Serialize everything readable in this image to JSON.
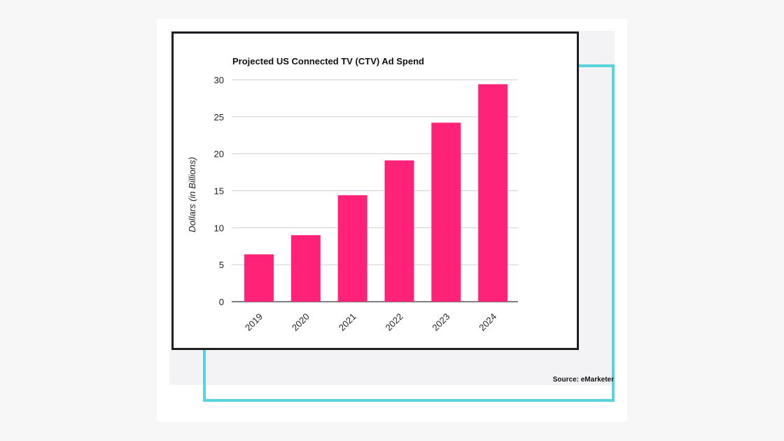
{
  "source": "Source: eMarketer",
  "colors": {
    "bar": "#ff2277",
    "frame": "#5ad4dc",
    "grid": "#cfcfd4",
    "border": "#1e1e22"
  },
  "chart_data": {
    "type": "bar",
    "title": "Projected US Connected TV (CTV) Ad Spend",
    "xlabel": "",
    "ylabel": "Dollars (in Billions)",
    "categories": [
      "2019",
      "2020",
      "2021",
      "2022",
      "2023",
      "2024"
    ],
    "values": [
      6.4,
      9.0,
      14.4,
      19.1,
      24.2,
      29.4
    ],
    "ylim": [
      0,
      30
    ],
    "yticks": [
      0,
      5,
      10,
      15,
      20,
      25,
      30
    ],
    "grid": true,
    "legend": "none"
  }
}
